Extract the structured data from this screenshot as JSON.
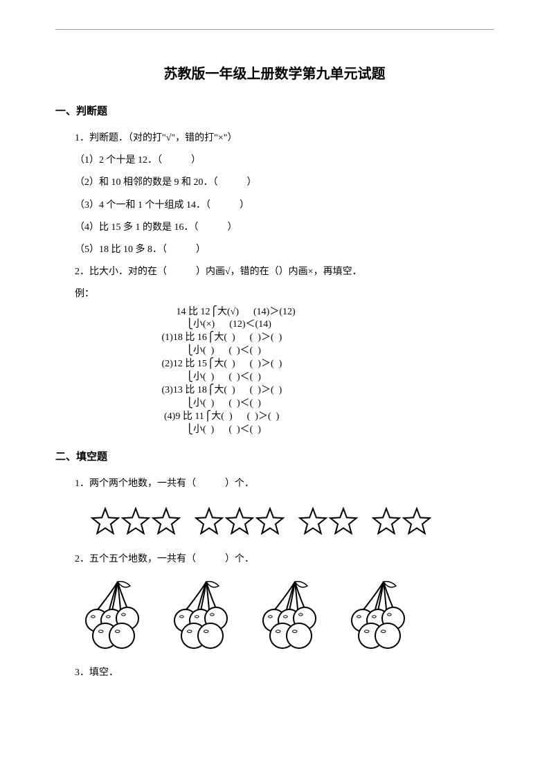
{
  "title": "苏教版一年级上册数学第九单元试题",
  "section1": {
    "heading": "一、判断题",
    "q1_intro": "1．判断题．（对的打\"√\"，错的打\"×\"）",
    "q1_items": [
      "（1）2 个十是 12．（　　　）",
      "（2）和 10 相邻的数是 9 和 20．（　　　）",
      "（3）4 个一和 1 个十组成 14．（　　　）",
      "（4）比 15 多 1 的数是 16．（　　　）",
      "（5）18 比 10 多 8．（　　　）"
    ],
    "q2_intro": "2．比大小．对的在（　　　）内画√，错的在（）内画×，再填空．",
    "q2_example_label": "例：",
    "compare": {
      "rows": [
        [
          "       14 比 12",
          "⎧大(√)      (14)＞(12)",
          "⎩小(×)      (12)＜(14)"
        ],
        [
          "(1)18 比 16",
          "⎧大(  )      (  )＞(  )",
          "⎩小(  )      (  )＜(  )"
        ],
        [
          "(2)12 比 15",
          "⎧大(  )      (  )＞(  )",
          "⎩小(  )      (  )＜(  )"
        ],
        [
          "(3)13 比 18",
          "⎧大(  )      (  )＞(  )",
          "⎩小(  )      (  )＜(  )"
        ],
        [
          "(4)9 比 11",
          "⎧大(  )      (  )＞(  )",
          "⎩小(  )      (  )＜(  )"
        ]
      ]
    }
  },
  "section2": {
    "heading": "二、填空题",
    "q1": "1．两个两个地数，一共有（　　　）个．",
    "stars": {
      "count": 10,
      "group_gaps_after": [
        2,
        5,
        7
      ],
      "stroke": "#000000",
      "fill": "#ffffff",
      "size": 44
    },
    "q2": "2．五个五个地数，一共有（　　　）个．",
    "cherries": {
      "bunches": 4,
      "balls_per_bunch": 5,
      "stroke": "#000000",
      "fill": "#ffffff",
      "size": 100
    },
    "q3": "3．填空．"
  },
  "colors": {
    "background": "#ffffff",
    "text": "#000000",
    "rule": "#999999"
  },
  "fonts": {
    "body": "SimSun",
    "heading": "SimHei",
    "body_size_pt": 10.5,
    "title_size_pt": 15
  }
}
